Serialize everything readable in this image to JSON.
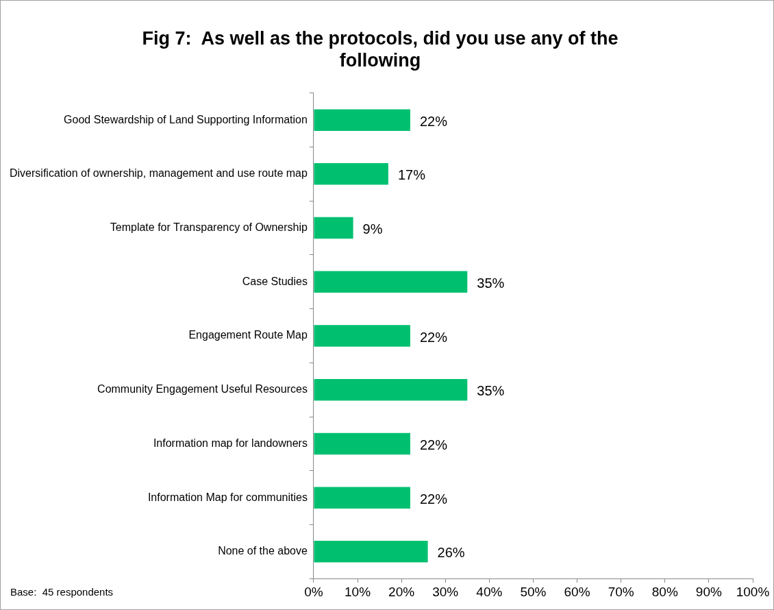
{
  "chart_data": {
    "type": "bar",
    "orientation": "horizontal",
    "title": "Fig 7:  As well as the protocols, did you use any of the following",
    "categories": [
      "Good Stewardship of Land Supporting Information",
      "Diversification of ownership, management and use route map",
      "Template for Transparency of Ownership",
      "Case Studies",
      "Engagement Route Map",
      "Community Engagement Useful Resources",
      "Information map for landowners",
      "Information Map for communities",
      "None of the above"
    ],
    "values": [
      22,
      17,
      9,
      35,
      22,
      35,
      22,
      22,
      26
    ],
    "value_labels": [
      "22%",
      "17%",
      "9%",
      "35%",
      "22%",
      "35%",
      "22%",
      "22%",
      "26%"
    ],
    "color": "#00c070",
    "xlim": [
      0,
      100
    ],
    "xticks": [
      {
        "value": 0,
        "label": "0%"
      },
      {
        "value": 10,
        "label": "10%"
      },
      {
        "value": 20,
        "label": "20%"
      },
      {
        "value": 30,
        "label": "30%"
      },
      {
        "value": 40,
        "label": "40%"
      },
      {
        "value": 50,
        "label": "50%"
      },
      {
        "value": 60,
        "label": "60%"
      },
      {
        "value": 70,
        "label": "70%"
      },
      {
        "value": 80,
        "label": "80%"
      },
      {
        "value": 90,
        "label": "90%"
      },
      {
        "value": 100,
        "label": "100%"
      }
    ],
    "annotations": [
      "Base:  45 respondents"
    ]
  }
}
